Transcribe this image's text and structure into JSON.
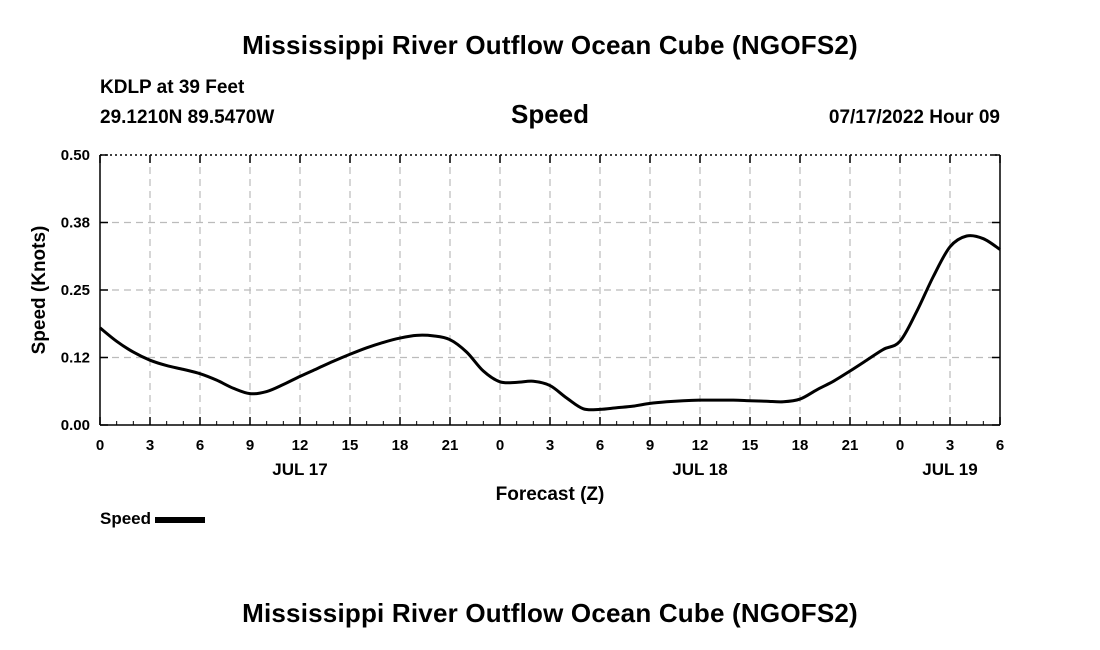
{
  "header": {
    "title": "Mississippi River Outflow Ocean Cube (NGOFS2)",
    "station": "KDLP at 39 Feet",
    "location": "29.1210N  89.5470W",
    "variable": "Speed",
    "datetime": "07/17/2022 Hour 09"
  },
  "footer": {
    "title": "Mississippi River Outflow Ocean Cube (NGOFS2)"
  },
  "colors": {
    "line": "#000000",
    "grid": "#bbbbbb",
    "background": "#ffffff"
  },
  "chart_data": {
    "type": "line",
    "xlabel": "Forecast (Z)",
    "ylabel": "Speed (Knots)",
    "xlim": [
      0,
      54
    ],
    "ylim": [
      0,
      0.5
    ],
    "grid": true,
    "legend_position": "bottom-left",
    "x_tick_labels": [
      "0",
      "3",
      "6",
      "9",
      "12",
      "15",
      "18",
      "21",
      "0",
      "3",
      "6",
      "9",
      "12",
      "15",
      "18",
      "21",
      "0",
      "3",
      "6"
    ],
    "y_tick_labels": [
      "0.00",
      "0.12",
      "0.25",
      "0.38",
      "0.50"
    ],
    "date_labels": [
      {
        "label": "JUL 17",
        "x": 12
      },
      {
        "label": "JUL 18",
        "x": 36
      },
      {
        "label": "JUL 19",
        "x": 51
      }
    ],
    "series": [
      {
        "name": "Speed",
        "x": [
          0,
          1,
          2,
          3,
          4,
          5,
          6,
          7,
          8,
          9,
          10,
          11,
          12,
          13,
          14,
          15,
          16,
          17,
          18,
          19,
          20,
          21,
          22,
          23,
          24,
          25,
          26,
          27,
          28,
          29,
          30,
          31,
          32,
          33,
          34,
          35,
          36,
          37,
          38,
          39,
          40,
          41,
          42,
          43,
          44,
          45,
          46,
          47,
          48,
          49,
          50,
          51,
          52,
          53,
          54
        ],
        "values": [
          0.18,
          0.155,
          0.135,
          0.12,
          0.11,
          0.103,
          0.095,
          0.083,
          0.068,
          0.058,
          0.062,
          0.075,
          0.09,
          0.104,
          0.118,
          0.131,
          0.143,
          0.153,
          0.161,
          0.166,
          0.165,
          0.158,
          0.135,
          0.1,
          0.08,
          0.079,
          0.081,
          0.073,
          0.05,
          0.03,
          0.029,
          0.032,
          0.035,
          0.04,
          0.043,
          0.045,
          0.046,
          0.046,
          0.046,
          0.045,
          0.044,
          0.043,
          0.048,
          0.065,
          0.081,
          0.1,
          0.12,
          0.14,
          0.155,
          0.21,
          0.275,
          0.33,
          0.35,
          0.345,
          0.325
        ]
      }
    ]
  }
}
